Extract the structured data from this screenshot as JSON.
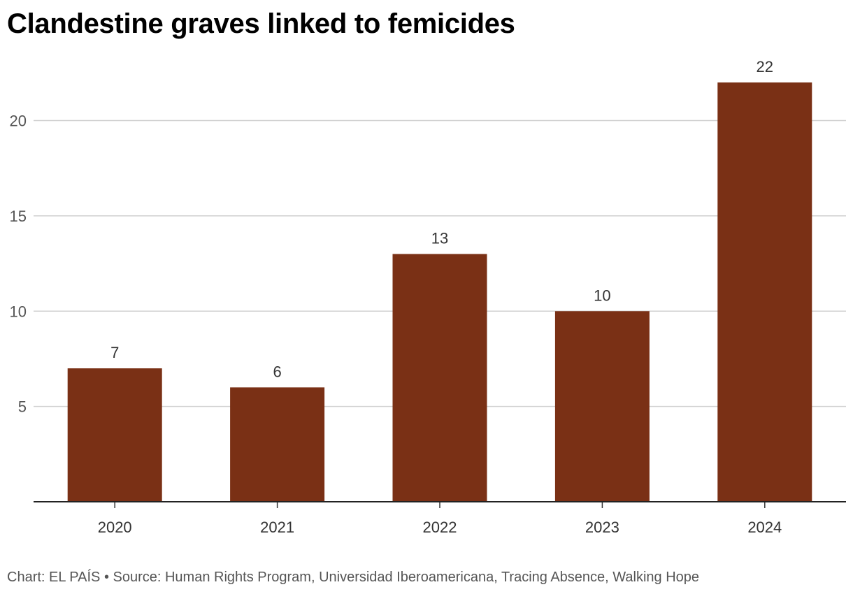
{
  "chart_data": {
    "type": "bar",
    "title": "Clandestine graves linked to femicides",
    "categories": [
      "2020",
      "2021",
      "2022",
      "2023",
      "2024"
    ],
    "values": [
      7,
      6,
      13,
      10,
      22
    ],
    "value_labels": [
      "7",
      "6",
      "13",
      "10",
      "22"
    ],
    "yticks": [
      5,
      10,
      15,
      20
    ],
    "ytick_labels": [
      "5",
      "10",
      "15",
      "20"
    ],
    "ylim": [
      0,
      22
    ],
    "xlabel": "",
    "ylabel": "",
    "grid": true,
    "bar_color": "#7a3015"
  },
  "footer": {
    "credit": "Chart: EL PAÍS • Source: Human Rights Program, Universidad Iberoamericana, Tracing Absence, Walking Hope"
  }
}
